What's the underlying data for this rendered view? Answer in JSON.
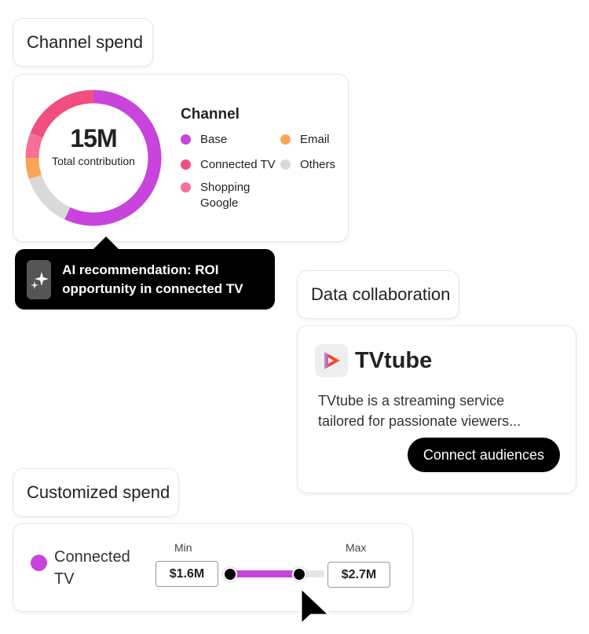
{
  "channel_spend": {
    "label": "Channel spend",
    "total_value": "15M",
    "total_label": "Total contribution",
    "legend_title": "Channel",
    "segments": [
      {
        "name": "Base",
        "percent": 57,
        "color": "#c844dc"
      },
      {
        "name": "Others",
        "percent": 13,
        "color": "#d9d9d9"
      },
      {
        "name": "Email",
        "percent": 5,
        "color": "#f8a55a"
      },
      {
        "name": "Shopping Google",
        "percent": 6,
        "color": "#f5709a"
      },
      {
        "name": "Connected TV",
        "percent": 19,
        "color": "#f24d7f"
      }
    ]
  },
  "ai_tooltip": {
    "icon": "sparkles-icon",
    "text": "AI recommendation: ROI opportunity in connected TV"
  },
  "data_collaboration": {
    "label": "Data collaboration",
    "brand": "TVtube",
    "description": "TVtube is a streaming service tailored for passionate viewers...",
    "button": "Connect audiences"
  },
  "customized_spend": {
    "label": "Customized spend",
    "channel": "Connected TV",
    "channel_color": "#c844dc",
    "min_label": "Min",
    "max_label": "Max",
    "min_value": "$1.6M",
    "max_value": "$2.7M",
    "slider_fill_fraction": 0.73
  }
}
